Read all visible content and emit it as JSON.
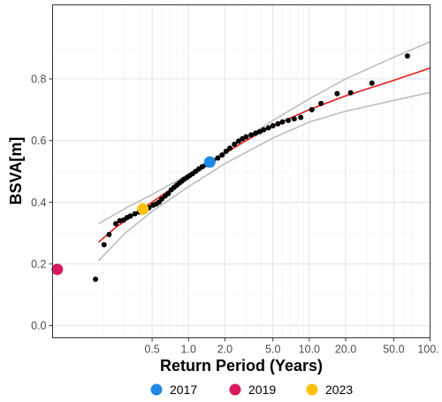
{
  "chart_data": {
    "type": "scatter",
    "title": "",
    "xlabel": "Return Period (Years)",
    "ylabel": "BSVA[m]",
    "x_scale": "log",
    "xlim": [
      0.075,
      100
    ],
    "ylim": [
      -0.04,
      1.04
    ],
    "grid": true,
    "x_ticks": [
      0.5,
      1.0,
      2.0,
      5.0,
      10.0,
      20.0,
      50.0,
      100.0
    ],
    "x_tick_labels": [
      "0.5",
      "1.0",
      "2.0",
      "5.0",
      "10.0",
      "20.0",
      "50.0",
      "100."
    ],
    "y_ticks": [
      0.0,
      0.2,
      0.4,
      0.6,
      0.8
    ],
    "y_tick_labels": [
      "0.0",
      "0.2",
      "0.4",
      "0.6",
      "0.8"
    ],
    "observations": {
      "color": "#000000",
      "points": [
        [
          0.17,
          0.15
        ],
        [
          0.2,
          0.262
        ],
        [
          0.22,
          0.295
        ],
        [
          0.25,
          0.33
        ],
        [
          0.27,
          0.34
        ],
        [
          0.29,
          0.342
        ],
        [
          0.31,
          0.35
        ],
        [
          0.33,
          0.355
        ],
        [
          0.36,
          0.362
        ],
        [
          0.39,
          0.368
        ],
        [
          0.43,
          0.375
        ],
        [
          0.47,
          0.382
        ],
        [
          0.51,
          0.39
        ],
        [
          0.54,
          0.394
        ],
        [
          0.57,
          0.4
        ],
        [
          0.6,
          0.41
        ],
        [
          0.64,
          0.42
        ],
        [
          0.68,
          0.428
        ],
        [
          0.72,
          0.44
        ],
        [
          0.76,
          0.448
        ],
        [
          0.8,
          0.455
        ],
        [
          0.84,
          0.462
        ],
        [
          0.88,
          0.468
        ],
        [
          0.92,
          0.474
        ],
        [
          0.97,
          0.48
        ],
        [
          1.02,
          0.486
        ],
        [
          1.08,
          0.492
        ],
        [
          1.15,
          0.5
        ],
        [
          1.22,
          0.508
        ],
        [
          1.3,
          0.515
        ],
        [
          1.4,
          0.522
        ],
        [
          1.5,
          0.528
        ],
        [
          1.6,
          0.535
        ],
        [
          1.75,
          0.543
        ],
        [
          1.9,
          0.553
        ],
        [
          2.05,
          0.565
        ],
        [
          2.2,
          0.575
        ],
        [
          2.4,
          0.588
        ],
        [
          2.6,
          0.598
        ],
        [
          2.8,
          0.606
        ],
        [
          3.0,
          0.612
        ],
        [
          3.3,
          0.618
        ],
        [
          3.6,
          0.624
        ],
        [
          3.9,
          0.629
        ],
        [
          4.2,
          0.635
        ],
        [
          4.6,
          0.641
        ],
        [
          5.0,
          0.648
        ],
        [
          5.5,
          0.654
        ],
        [
          6.0,
          0.66
        ],
        [
          6.7,
          0.665
        ],
        [
          7.5,
          0.67
        ],
        [
          8.5,
          0.675
        ],
        [
          10.5,
          0.7
        ],
        [
          12.5,
          0.72
        ],
        [
          17.0,
          0.752
        ],
        [
          22.0,
          0.755
        ],
        [
          33.0,
          0.786
        ],
        [
          65.0,
          0.874
        ]
      ]
    },
    "fit_line": {
      "color": "#e41a1c",
      "points": [
        [
          0.18,
          0.27
        ],
        [
          0.25,
          0.318
        ],
        [
          0.35,
          0.358
        ],
        [
          0.5,
          0.4
        ],
        [
          0.7,
          0.44
        ],
        [
          1.0,
          0.48
        ],
        [
          1.5,
          0.525
        ],
        [
          2.0,
          0.558
        ],
        [
          3.0,
          0.6
        ],
        [
          5.0,
          0.648
        ],
        [
          10.0,
          0.7
        ],
        [
          20.0,
          0.745
        ],
        [
          50.0,
          0.795
        ],
        [
          100.0,
          0.835
        ]
      ]
    },
    "confidence_bands": {
      "color": "#bdbdbd",
      "upper": [
        [
          0.18,
          0.33
        ],
        [
          0.3,
          0.38
        ],
        [
          0.5,
          0.425
        ],
        [
          1.0,
          0.49
        ],
        [
          2.0,
          0.565
        ],
        [
          5.0,
          0.665
        ],
        [
          10.0,
          0.735
        ],
        [
          20.0,
          0.8
        ],
        [
          50.0,
          0.87
        ],
        [
          100.0,
          0.92
        ]
      ],
      "lower": [
        [
          0.18,
          0.21
        ],
        [
          0.3,
          0.3
        ],
        [
          0.5,
          0.37
        ],
        [
          1.0,
          0.45
        ],
        [
          2.0,
          0.525
        ],
        [
          5.0,
          0.608
        ],
        [
          10.0,
          0.66
        ],
        [
          20.0,
          0.695
        ],
        [
          50.0,
          0.73
        ],
        [
          100.0,
          0.756
        ]
      ]
    },
    "highlighted_years": [
      {
        "label": "2017",
        "x": 1.5,
        "y": 0.53,
        "color": "#1e88e5"
      },
      {
        "label": "2019",
        "x": 0.082,
        "y": 0.182,
        "color": "#d81b60"
      },
      {
        "label": "2023",
        "x": 0.42,
        "y": 0.378,
        "color": "#ffc107"
      }
    ],
    "legend": {
      "position": "bottom",
      "items": [
        {
          "label": "2017",
          "color": "#1e88e5"
        },
        {
          "label": "2019",
          "color": "#d81b60"
        },
        {
          "label": "2023",
          "color": "#ffc107"
        }
      ]
    }
  }
}
